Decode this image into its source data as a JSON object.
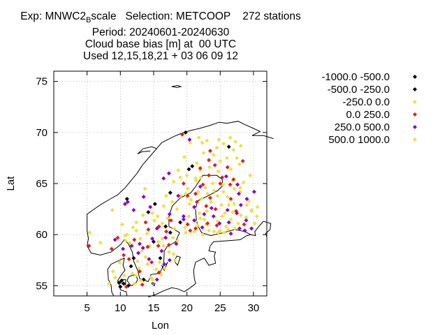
{
  "title": {
    "line1_prefix": "Exp: MNWC2",
    "line1_sub": "B",
    "line1_rest": "scale   Selection: METCOOP    272 stations",
    "line2": "Period: 20240601-20240630",
    "line3": "Cloud base bias [m] at  00 UTC",
    "line4": "Used 12,15,18,21 + 03 06 09 12"
  },
  "chart_data": {
    "type": "scatter",
    "xlabel": "Lon",
    "ylabel": "Lat",
    "xlim": [
      0,
      32
    ],
    "ylim": [
      54,
      76
    ],
    "xticks": [
      5,
      10,
      15,
      20,
      25,
      30
    ],
    "yticks": [
      55,
      60,
      65,
      70,
      75
    ],
    "grid": true,
    "legend_position": "right",
    "series": [
      {
        "name": "-1000.0 -500.0",
        "color": "#000000",
        "points": [
          [
            19.8,
            70.0
          ],
          [
            26.3,
            68.6
          ],
          [
            20.8,
            66.7
          ],
          [
            17.5,
            64.1
          ],
          [
            15.2,
            63.0
          ],
          [
            14.2,
            62.2
          ],
          [
            11.0,
            63.5
          ],
          [
            20.3,
            66.4
          ],
          [
            16.8,
            60.8
          ],
          [
            17.5,
            60.2
          ],
          [
            19.0,
            61.2
          ],
          [
            16.0,
            57.7
          ],
          [
            13.5,
            55.6
          ],
          [
            10.5,
            55.2
          ],
          [
            10.2,
            55.5
          ],
          [
            9.8,
            55.3
          ],
          [
            11.2,
            55.0
          ]
        ]
      },
      {
        "name": "-500.0 -250.0",
        "color": "#000000",
        "points": [
          [
            12.0,
            57.7
          ],
          [
            10.0,
            54.9
          ],
          [
            11.6,
            56.9
          ],
          [
            15.0,
            59.3
          ]
        ]
      },
      {
        "name": "-250.0 0.0",
        "color": "#f0e040",
        "points": [
          [
            20.5,
            69.0
          ],
          [
            21.8,
            69.5
          ],
          [
            23.0,
            69.2
          ],
          [
            24.5,
            68.5
          ],
          [
            25.5,
            68.9
          ],
          [
            26.5,
            69.5
          ],
          [
            27.3,
            69.1
          ],
          [
            27.0,
            68.3
          ],
          [
            28.1,
            68.7
          ],
          [
            22.5,
            68.0
          ],
          [
            24.0,
            67.8
          ],
          [
            25.0,
            67.2
          ],
          [
            26.0,
            67.5
          ],
          [
            27.5,
            67.5
          ],
          [
            21.5,
            67.0
          ],
          [
            22.0,
            66.3
          ],
          [
            23.4,
            66.6
          ],
          [
            24.7,
            66.2
          ],
          [
            26.6,
            66.4
          ],
          [
            20.0,
            65.8
          ],
          [
            19.0,
            65.6
          ],
          [
            18.0,
            65.2
          ],
          [
            21.3,
            65.5
          ],
          [
            22.1,
            65.6
          ],
          [
            23.9,
            65.0
          ],
          [
            25.4,
            64.9
          ],
          [
            26.9,
            65.3
          ],
          [
            28.5,
            65.1
          ],
          [
            20.1,
            64.5
          ],
          [
            21.7,
            64.2
          ],
          [
            22.8,
            64.6
          ],
          [
            24.1,
            64.3
          ],
          [
            26.1,
            63.7
          ],
          [
            28.0,
            64.2
          ],
          [
            19.1,
            63.8
          ],
          [
            20.6,
            63.4
          ],
          [
            22.2,
            63.5
          ],
          [
            23.6,
            63.2
          ],
          [
            25.2,
            62.9
          ],
          [
            27.1,
            63.0
          ],
          [
            29.3,
            63.3
          ],
          [
            18.5,
            62.5
          ],
          [
            21.2,
            62.6
          ],
          [
            23.0,
            62.3
          ],
          [
            25.7,
            62.1
          ],
          [
            28.1,
            61.9
          ],
          [
            29.7,
            62.4
          ],
          [
            20.3,
            61.8
          ],
          [
            22.6,
            61.5
          ],
          [
            24.6,
            61.3
          ],
          [
            26.6,
            61.5
          ],
          [
            27.7,
            61.1
          ],
          [
            30.6,
            62.7
          ],
          [
            21.6,
            60.9
          ],
          [
            23.3,
            60.4
          ],
          [
            24.1,
            60.3
          ],
          [
            24.7,
            60.2
          ],
          [
            25.0,
            60.4
          ],
          [
            25.6,
            60.2
          ],
          [
            26.2,
            60.5
          ],
          [
            27.2,
            60.6
          ],
          [
            25.9,
            60.8
          ],
          [
            21.1,
            60.3
          ],
          [
            22.4,
            60.0
          ],
          [
            19.8,
            60.2
          ],
          [
            17.9,
            59.7
          ],
          [
            16.3,
            59.6
          ],
          [
            15.7,
            59.3
          ],
          [
            14.4,
            58.9
          ],
          [
            13.2,
            58.4
          ],
          [
            12.6,
            57.4
          ],
          [
            14.1,
            57.1
          ],
          [
            15.4,
            56.6
          ],
          [
            16.7,
            56.7
          ],
          [
            18.2,
            57.5
          ],
          [
            16.1,
            56.1
          ],
          [
            14.6,
            55.8
          ],
          [
            13.1,
            55.5
          ],
          [
            12.1,
            55.2
          ],
          [
            8.3,
            55.2
          ],
          [
            9.2,
            55.8
          ],
          [
            11.8,
            56.2
          ],
          [
            17.3,
            58.3
          ],
          [
            16.5,
            58.9
          ],
          [
            13.0,
            59.6
          ],
          [
            11.4,
            59.2
          ],
          [
            10.7,
            59.9
          ],
          [
            11.9,
            60.7
          ],
          [
            14.0,
            60.1
          ],
          [
            15.1,
            61.4
          ],
          [
            13.4,
            61.9
          ],
          [
            17.1,
            61.6
          ],
          [
            18.6,
            59.4
          ],
          [
            18.0,
            58.1
          ],
          [
            5.4,
            60.2
          ],
          [
            7.0,
            59.2
          ],
          [
            10.3,
            61.0
          ],
          [
            8.8,
            62.4
          ],
          [
            13.7,
            64.5
          ],
          [
            19.6,
            67.6
          ],
          [
            29.5,
            65.8
          ],
          [
            27.9,
            66.9
          ],
          [
            26.3,
            62.9
          ],
          [
            28.9,
            61.7
          ],
          [
            30.2,
            61.1
          ],
          [
            24.6,
            63.8
          ],
          [
            23.1,
            64.0
          ],
          [
            21.9,
            62.1
          ],
          [
            20.4,
            63.0
          ],
          [
            29.0,
            62.9
          ],
          [
            27.1,
            64.5
          ],
          [
            19.8,
            64.0
          ],
          [
            22.9,
            61.0
          ],
          [
            25.3,
            61.8
          ],
          [
            26.9,
            62.2
          ],
          [
            21.3,
            61.3
          ],
          [
            17.8,
            63.2
          ],
          [
            16.5,
            62.8
          ],
          [
            14.8,
            62.1
          ],
          [
            12.4,
            60.4
          ],
          [
            10.8,
            59.4
          ],
          [
            9.9,
            57.3
          ],
          [
            8.9,
            56.4
          ],
          [
            10.6,
            56.0
          ],
          [
            12.8,
            56.7
          ],
          [
            15.9,
            57.3
          ],
          [
            14.8,
            55.6
          ]
        ]
      },
      {
        "name": "0.0 250.0",
        "color": "#e02010",
        "points": [
          [
            19.3,
            69.8
          ],
          [
            23.5,
            68.2
          ],
          [
            23.3,
            67.3
          ],
          [
            26.1,
            66.6
          ],
          [
            28.4,
            67.2
          ],
          [
            23.3,
            65.8
          ],
          [
            22.4,
            64.9
          ],
          [
            25.3,
            65.6
          ],
          [
            27.0,
            65.4
          ],
          [
            19.5,
            65.0
          ],
          [
            20.1,
            63.8
          ],
          [
            21.5,
            63.2
          ],
          [
            24.3,
            62.5
          ],
          [
            22.9,
            62.8
          ],
          [
            26.6,
            63.5
          ],
          [
            23.1,
            61.1
          ],
          [
            24.5,
            60.9
          ],
          [
            27.4,
            62.3
          ],
          [
            28.6,
            61.0
          ],
          [
            21.3,
            60.6
          ],
          [
            20.5,
            60.4
          ],
          [
            20.1,
            61.0
          ],
          [
            17.6,
            61.4
          ],
          [
            15.8,
            60.8
          ],
          [
            16.9,
            60.3
          ],
          [
            15.7,
            58.9
          ],
          [
            14.2,
            60.5
          ],
          [
            13.8,
            61.2
          ],
          [
            14.1,
            58.8
          ],
          [
            12.1,
            59.5
          ],
          [
            10.5,
            58.0
          ],
          [
            9.6,
            59.7
          ],
          [
            8.7,
            58.6
          ],
          [
            5.3,
            58.9
          ],
          [
            11.3,
            57.6
          ],
          [
            12.9,
            56.4
          ],
          [
            14.7,
            57.3
          ],
          [
            15.8,
            56.3
          ],
          [
            13.3,
            55.1
          ],
          [
            10.9,
            54.9
          ],
          [
            22.0,
            66.5
          ],
          [
            24.2,
            66.8
          ],
          [
            26.5,
            64.9
          ],
          [
            25.0,
            65.0
          ],
          [
            21.3,
            64.0
          ],
          [
            23.5,
            63.6
          ],
          [
            17.3,
            59.0
          ]
        ]
      },
      {
        "name": "250.0 500.0",
        "color": "#8800cc",
        "points": [
          [
            20.4,
            69.3
          ],
          [
            17.3,
            66.0
          ],
          [
            16.5,
            65.5
          ],
          [
            22.0,
            64.7
          ],
          [
            25.9,
            65.7
          ],
          [
            27.6,
            64.9
          ],
          [
            27.8,
            64.0
          ],
          [
            29.0,
            63.5
          ],
          [
            30.1,
            64.2
          ],
          [
            18.7,
            63.8
          ],
          [
            21.1,
            62.7
          ],
          [
            23.7,
            62.6
          ],
          [
            26.1,
            62.4
          ],
          [
            27.5,
            62.1
          ],
          [
            28.9,
            61.4
          ],
          [
            14.5,
            62.7
          ],
          [
            17.4,
            62.0
          ],
          [
            19.5,
            61.5
          ],
          [
            22.3,
            60.7
          ],
          [
            24.9,
            61.1
          ],
          [
            26.3,
            61.2
          ],
          [
            27.9,
            60.6
          ],
          [
            28.7,
            60.4
          ],
          [
            12.0,
            62.4
          ],
          [
            11.1,
            63.2
          ],
          [
            13.5,
            63.7
          ],
          [
            10.7,
            63.0
          ],
          [
            15.5,
            60.6
          ],
          [
            16.8,
            59.7
          ],
          [
            14.8,
            59.6
          ],
          [
            12.9,
            59.1
          ],
          [
            11.7,
            58.9
          ],
          [
            10.4,
            58.6
          ],
          [
            9.2,
            59.5
          ],
          [
            13.4,
            58.7
          ],
          [
            16.2,
            58.4
          ],
          [
            17.4,
            57.5
          ],
          [
            18.4,
            59.1
          ],
          [
            19.5,
            61.8
          ],
          [
            24.0,
            61.8
          ],
          [
            28.1,
            62.9
          ],
          [
            29.7,
            60.6
          ],
          [
            26.6,
            60.1
          ],
          [
            22.6,
            62.0
          ],
          [
            21.1,
            61.4
          ],
          [
            14.3,
            57.6
          ],
          [
            12.7,
            58.2
          ],
          [
            15.5,
            55.6
          ],
          [
            16.6,
            57.1
          ]
        ]
      },
      {
        "name": "500.0 1000.0",
        "color": "#f0e040",
        "points": [
          [
            28.0,
            64.6
          ],
          [
            29.7,
            62.3
          ],
          [
            30.5,
            61.8
          ],
          [
            25.5,
            64.2
          ],
          [
            21.4,
            65.3
          ],
          [
            22.0,
            61.6
          ],
          [
            19.7,
            60.7
          ],
          [
            18.1,
            60.6
          ],
          [
            16.3,
            61.1
          ],
          [
            24.8,
            69.3
          ],
          [
            22.3,
            69.0
          ],
          [
            18.7,
            66.3
          ],
          [
            16.9,
            63.8
          ],
          [
            15.6,
            61.8
          ],
          [
            12.4,
            61.2
          ],
          [
            11.0,
            60.0
          ],
          [
            13.8,
            57.8
          ],
          [
            12.3,
            56.0
          ]
        ]
      }
    ]
  }
}
